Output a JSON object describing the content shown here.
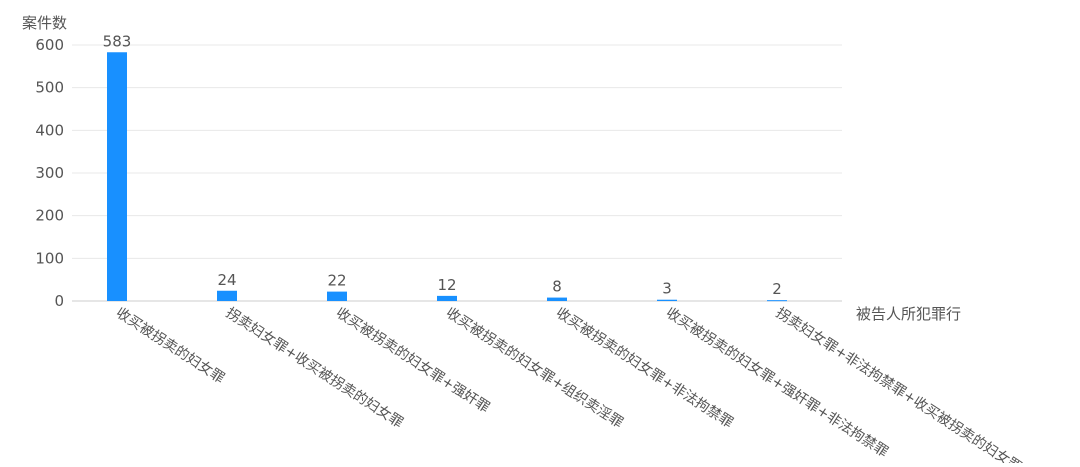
{
  "chart_data": {
    "type": "bar",
    "ylabel": "案件数",
    "xlabel": "被告人所犯罪行",
    "ylim": [
      0,
      600
    ],
    "yticks": [
      0,
      100,
      200,
      300,
      400,
      500,
      600
    ],
    "grid": true,
    "categories": [
      "收买被拐卖的妇女罪",
      "拐卖妇女罪+收买被拐卖的妇女罪",
      "收买被拐卖的妇女罪+强奸罪",
      "收买被拐卖的妇女罪+组织卖淫罪",
      "收买被拐卖的妇女罪+非法拘禁罪",
      "收买被拐卖的妇女罪+强奸罪+非法拘禁罪",
      "拐卖妇女罪+非法拘禁罪+收买被拐卖的妇女罪"
    ],
    "values": [
      583,
      24,
      22,
      12,
      8,
      3,
      2
    ],
    "bar_color": "#1890ff"
  }
}
